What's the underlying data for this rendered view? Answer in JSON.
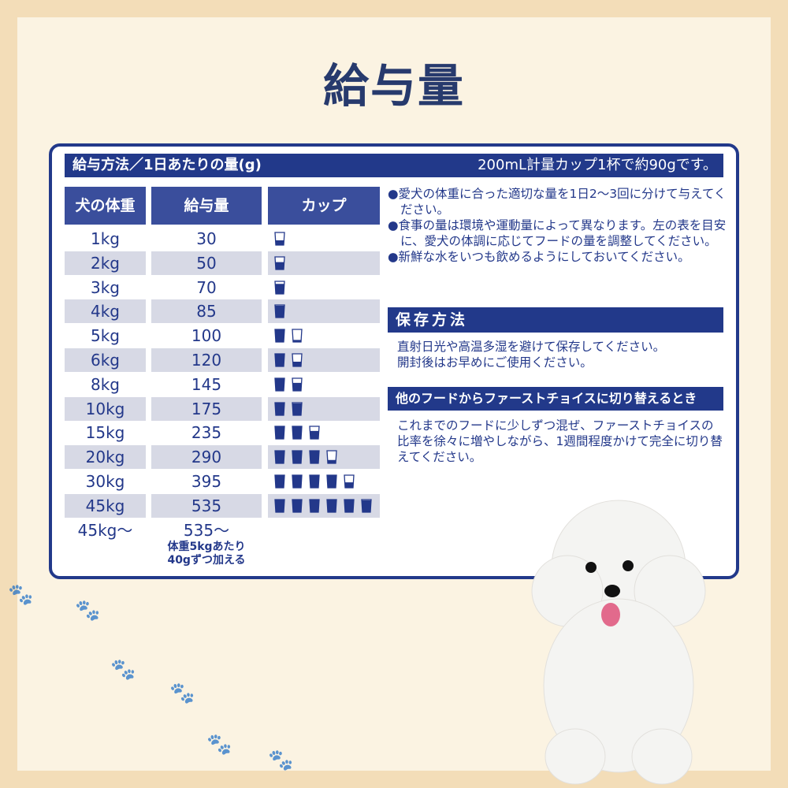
{
  "title": "給与量",
  "feeding": {
    "header": "給与方法／1日あたりの量(g)",
    "cup_note": "200mL計量カップ1杯で約90gです。",
    "columns": [
      "犬の体重",
      "給与量",
      "カップ"
    ],
    "rows": [
      {
        "weight": "1kg",
        "amount": "30",
        "cups": [
          0.33
        ]
      },
      {
        "weight": "2kg",
        "amount": "50",
        "cups": [
          0.56
        ]
      },
      {
        "weight": "3kg",
        "amount": "70",
        "cups": [
          0.78
        ]
      },
      {
        "weight": "4kg",
        "amount": "85",
        "cups": [
          0.94
        ]
      },
      {
        "weight": "5kg",
        "amount": "100",
        "cups": [
          1,
          0.11
        ]
      },
      {
        "weight": "6kg",
        "amount": "120",
        "cups": [
          1,
          0.33
        ]
      },
      {
        "weight": "8kg",
        "amount": "145",
        "cups": [
          1,
          0.61
        ]
      },
      {
        "weight": "10kg",
        "amount": "175",
        "cups": [
          1,
          0.94
        ]
      },
      {
        "weight": "15kg",
        "amount": "235",
        "cups": [
          1,
          1,
          0.61
        ]
      },
      {
        "weight": "20kg",
        "amount": "290",
        "cups": [
          1,
          1,
          1,
          0.22
        ]
      },
      {
        "weight": "30kg",
        "amount": "395",
        "cups": [
          1,
          1,
          1,
          1,
          0.39
        ]
      },
      {
        "weight": "45kg",
        "amount": "535",
        "cups": [
          1,
          1,
          1,
          1,
          1,
          0.94
        ]
      }
    ],
    "last_row": {
      "weight": "45kg〜",
      "amount": "535〜",
      "note1": "体重5kgあたり",
      "note2": "40gずつ加える"
    }
  },
  "notes": [
    "●愛犬の体重に合った適切な量を1日2〜3回に分けて与えてください。",
    "●食事の量は環境や運動量によって異なります。左の表を目安に、愛犬の体調に応じてフードの量を調整してください。",
    "●新鮮な水をいつも飲めるようにしておいてください。"
  ],
  "storage": {
    "heading": "保存方法",
    "line1": "直射日光や高温多湿を避けて保存してください。",
    "line2": "開封後はお早めにご使用ください。"
  },
  "switching": {
    "heading": "他のフードからファーストチョイスに切り替えるとき",
    "text": "これまでのフードに少しずつ混ぜ、ファーストチョイスの比率を徐々に増やしながら、1週間程度かけて完全に切り替えてください。"
  },
  "colors": {
    "navy": "#22398a",
    "header_cell": "#3a4e9c",
    "alt_row": "#d7d9e5",
    "background": "#f3ddb8"
  }
}
